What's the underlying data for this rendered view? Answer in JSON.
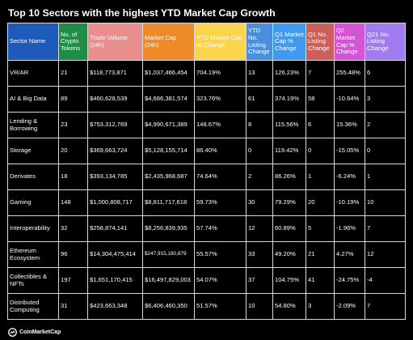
{
  "title": "Top 10 Sectors with the highest YTD Market Cap Growth",
  "columns": [
    {
      "label": "Sector Name",
      "color": "#1d5aba"
    },
    {
      "label": "No. of Crypto Tokens",
      "color": "#1e8d47"
    },
    {
      "label": "Trade Volume (24h)",
      "color": "#e98e8e"
    },
    {
      "label": "Market Cap (24h)",
      "color": "#ef8a29"
    },
    {
      "label": "YTD Market Cap % Change",
      "color": "#fad54c"
    },
    {
      "label": "YTD No. Listing Change",
      "color": "#4a8fde"
    },
    {
      "label": "Q1 Market Cap % Change",
      "color": "#3f9bf0"
    },
    {
      "label": "Q1 No. Listing Change",
      "color": "#cd5f5b"
    },
    {
      "label": "Q2 Market Cap % Change",
      "color": "#d454d6"
    },
    {
      "label": "Q21 No. Listing Change",
      "color": "#a07cf0"
    }
  ],
  "rows": [
    [
      "VR/AR",
      "21",
      "$118,773,871",
      "$1,037,466,454",
      "704.19%",
      "13",
      "126.23%",
      "7",
      "255.48%",
      "6"
    ],
    [
      "AI & Big Data",
      "89",
      "$460,628,539",
      "$4,686,381,574",
      "323.76%",
      "61",
      "374.19%",
      "58",
      "-10.64%",
      "3"
    ],
    [
      "Lending & Borrowing",
      "23",
      "$753,312,769",
      "$4,990,671,389",
      "148.67%",
      "8",
      "115.56%",
      "6",
      "15.36%",
      "2"
    ],
    [
      "Storage",
      "20",
      "$369,663,724",
      "$5,128,155,714",
      "86.40%",
      "0",
      "119.42%",
      "0",
      "-15.05%",
      "0"
    ],
    [
      "Derivates",
      "18",
      "$393,134,785",
      "$2,435,968,687",
      "74.64%",
      "2",
      "86.26%",
      "1",
      "-6.24%",
      "1"
    ],
    [
      "Gaming",
      "148",
      "$1,000,808,717",
      "$8,811,717,618",
      "59.73%",
      "30",
      "79.29%",
      "20",
      "-10.19%",
      "10"
    ],
    [
      "Interoperability",
      "32",
      "$258,874,141",
      "$8,256,839,935",
      "57.74%",
      "12",
      "60.89%",
      "5",
      "-1.96%",
      "7"
    ],
    [
      "Ethereum Ecosystem",
      "96",
      "$14,304,475,414",
      "$247,915,180,879",
      "55.57%",
      "33",
      "49.20%",
      "21",
      "4.27%",
      "12"
    ],
    [
      "Collectibles & NFTs",
      "197",
      "$1,651,170,415",
      "$16,497,829,003",
      "54.07%",
      "37",
      "104.75%",
      "41",
      "-24.75%",
      "-4"
    ],
    [
      "Distributed Computing",
      "31",
      "$423,663,348",
      "$6,406,460,350",
      "51.57%",
      "10",
      "54.80%",
      "3",
      "-2.09%",
      "7"
    ]
  ],
  "footer": {
    "brand": "CoinMarketCap",
    "icon": "coinmarketcap-logo-icon"
  }
}
